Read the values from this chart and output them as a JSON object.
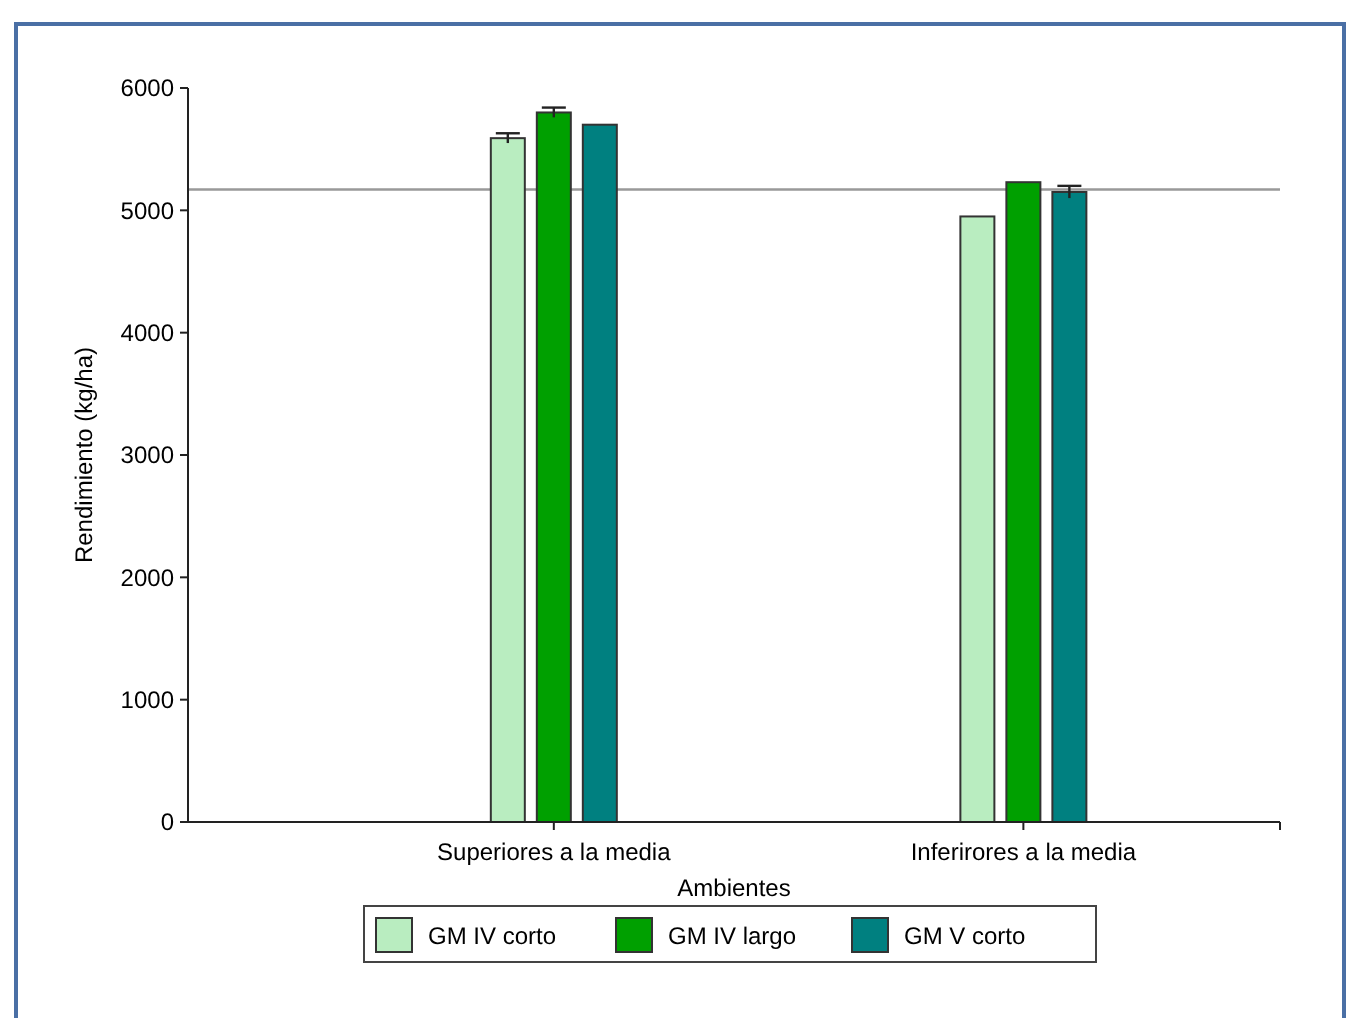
{
  "chart_data": {
    "type": "bar",
    "xlabel": "Ambientes",
    "ylabel": "Rendimiento (kg/ha)",
    "categories": [
      "Superiores a la media",
      "Inferirores a la media"
    ],
    "series": [
      {
        "name": "GM IV corto",
        "color": "#b9edc0",
        "values": [
          5590,
          4950
        ],
        "errors": [
          40,
          null
        ]
      },
      {
        "name": "GM IV largo",
        "color": "#00a000",
        "values": [
          5800,
          5230
        ],
        "errors": [
          40,
          null
        ]
      },
      {
        "name": "GM V corto",
        "color": "#008080",
        "values": [
          5700,
          5150
        ],
        "errors": [
          null,
          50
        ]
      }
    ],
    "ylim": [
      0,
      6000
    ],
    "yticks": [
      0,
      1000,
      2000,
      3000,
      4000,
      5000,
      6000
    ],
    "ref_lines": [
      {
        "axis": "y",
        "value": 5170,
        "color": "#999999"
      }
    ],
    "legend": "bottom"
  }
}
